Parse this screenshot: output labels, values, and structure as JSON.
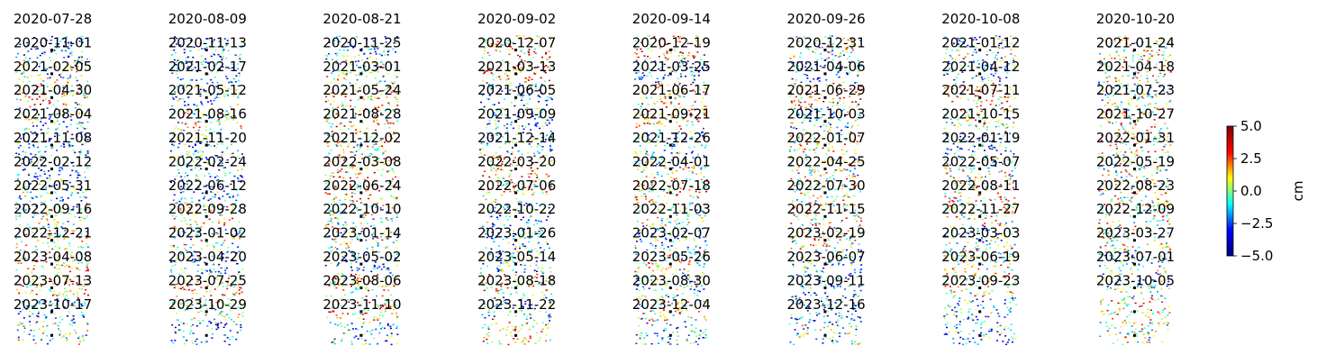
{
  "chart_data": {
    "type": "image-grid",
    "panel_titles": [
      "2020-07-28",
      "2020-08-09",
      "2020-08-21",
      "2020-09-02",
      "2020-09-14",
      "2020-09-26",
      "2020-10-08",
      "2020-10-20",
      "2020-11-01",
      "2020-11-13",
      "2020-11-25",
      "2020-12-07",
      "2020-12-19",
      "2020-12-31",
      "2021-01-12",
      "2021-01-24",
      "2021-02-05",
      "2021-02-17",
      "2021-03-01",
      "2021-03-13",
      "2021-03-25",
      "2021-04-06",
      "2021-04-12",
      "2021-04-18",
      "2021-04-30",
      "2021-05-12",
      "2021-05-24",
      "2021-06-05",
      "2021-06-17",
      "2021-06-29",
      "2021-07-11",
      "2021-07-23",
      "2021-08-04",
      "2021-08-16",
      "2021-08-28",
      "2021-09-09",
      "2021-09-21",
      "2021-10-03",
      "2021-10-15",
      "2021-10-27",
      "2021-11-08",
      "2021-11-20",
      "2021-12-02",
      "2021-12-14",
      "2021-12-26",
      "2022-01-07",
      "2022-01-19",
      "2022-01-31",
      "2022-02-12",
      "2022-02-24",
      "2022-03-08",
      "2022-03-20",
      "2022-04-01",
      "2022-04-25",
      "2022-05-07",
      "2022-05-19",
      "2022-05-31",
      "2022-06-12",
      "2022-06-24",
      "2022-07-06",
      "2022-07-18",
      "2022-07-30",
      "2022-08-11",
      "2022-08-23",
      "2022-09-16",
      "2022-09-28",
      "2022-10-10",
      "2022-10-22",
      "2022-11-03",
      "2022-11-15",
      "2022-11-27",
      "2022-12-09",
      "2022-12-21",
      "2023-01-02",
      "2023-01-14",
      "2023-01-26",
      "2023-02-07",
      "2023-02-19",
      "2023-03-03",
      "2023-03-27",
      "2023-04-08",
      "2023-04-20",
      "2023-05-02",
      "2023-05-14",
      "2023-05-26",
      "2023-06-07",
      "2023-06-19",
      "2023-07-01",
      "2023-07-13",
      "2023-07-25",
      "2023-08-06",
      "2023-08-18",
      "2023-08-30",
      "2023-09-11",
      "2023-09-23",
      "2023-10-05",
      "2023-10-17",
      "2023-10-29",
      "2023-11-10",
      "2023-11-22",
      "2023-12-04",
      "2023-12-16",
      null,
      null
    ],
    "colorbar": {
      "label": "cm",
      "ylim": [
        -5,
        5
      ],
      "yticks": [
        {
          "value": 5,
          "label": "5.0"
        },
        {
          "value": 2.5,
          "label": "2.5"
        },
        {
          "value": 0,
          "label": "0.0"
        },
        {
          "value": -2.5,
          "label": "−2.5"
        },
        {
          "value": -5,
          "label": "−5.0"
        }
      ],
      "colormap": [
        "#00007f",
        "#0000ff",
        "#00ffff",
        "#ffff00",
        "#ff0000",
        "#7f0000"
      ]
    }
  }
}
